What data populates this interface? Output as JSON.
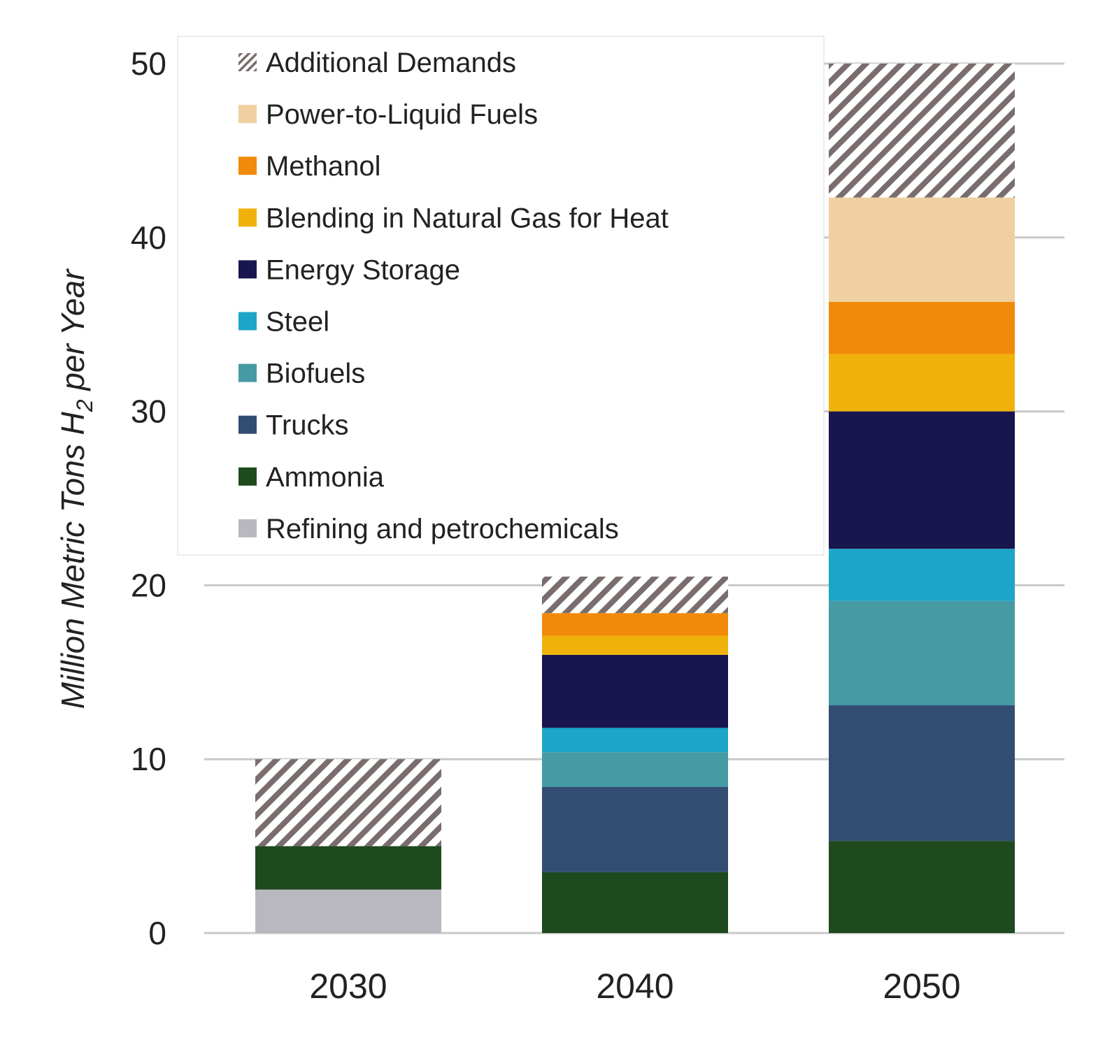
{
  "chart_data": {
    "type": "bar",
    "stacked": true,
    "title": "",
    "xlabel": "",
    "ylabel": {
      "main": "Million Metric Tons H",
      "subscript": "2",
      "suffix": " per Year"
    },
    "ylim": [
      0,
      50
    ],
    "yticks": [
      0,
      10,
      20,
      30,
      40,
      50
    ],
    "grid": true,
    "legend_position": "top-left",
    "categories": [
      "2030",
      "2040",
      "2050"
    ],
    "series": [
      {
        "name": "Refining and petrochemicals",
        "color": "#b9b8c0",
        "values": [
          2.5,
          0,
          0
        ]
      },
      {
        "name": "Ammonia",
        "color": "#1e4a1e",
        "values": [
          2.5,
          3.5,
          5.3
        ]
      },
      {
        "name": "Trucks",
        "color": "#324c72",
        "values": [
          0,
          4.9,
          7.8
        ]
      },
      {
        "name": "Biofuels",
        "color": "#469aa4",
        "values": [
          0,
          2.0,
          6.0
        ]
      },
      {
        "name": "Steel",
        "color": "#1ca5c8",
        "values": [
          0,
          1.4,
          3.0
        ]
      },
      {
        "name": "Energy Storage",
        "color": "#19154e",
        "values": [
          0,
          4.2,
          7.9
        ]
      },
      {
        "name": "Blending in Natural Gas for Heat",
        "color": "#f0b20a",
        "values": [
          0,
          1.1,
          3.3
        ]
      },
      {
        "name": "Methanol",
        "color": "#f18a0a",
        "values": [
          0,
          1.3,
          3.0
        ]
      },
      {
        "name": "Power-to-Liquid Fuels",
        "color": "#f0cfa0",
        "values": [
          0,
          0,
          6.0
        ]
      },
      {
        "name": "Additional Demands",
        "color": "#7a6d6d",
        "pattern": "hatch",
        "values": [
          5.0,
          2.1,
          7.7
        ]
      }
    ]
  }
}
